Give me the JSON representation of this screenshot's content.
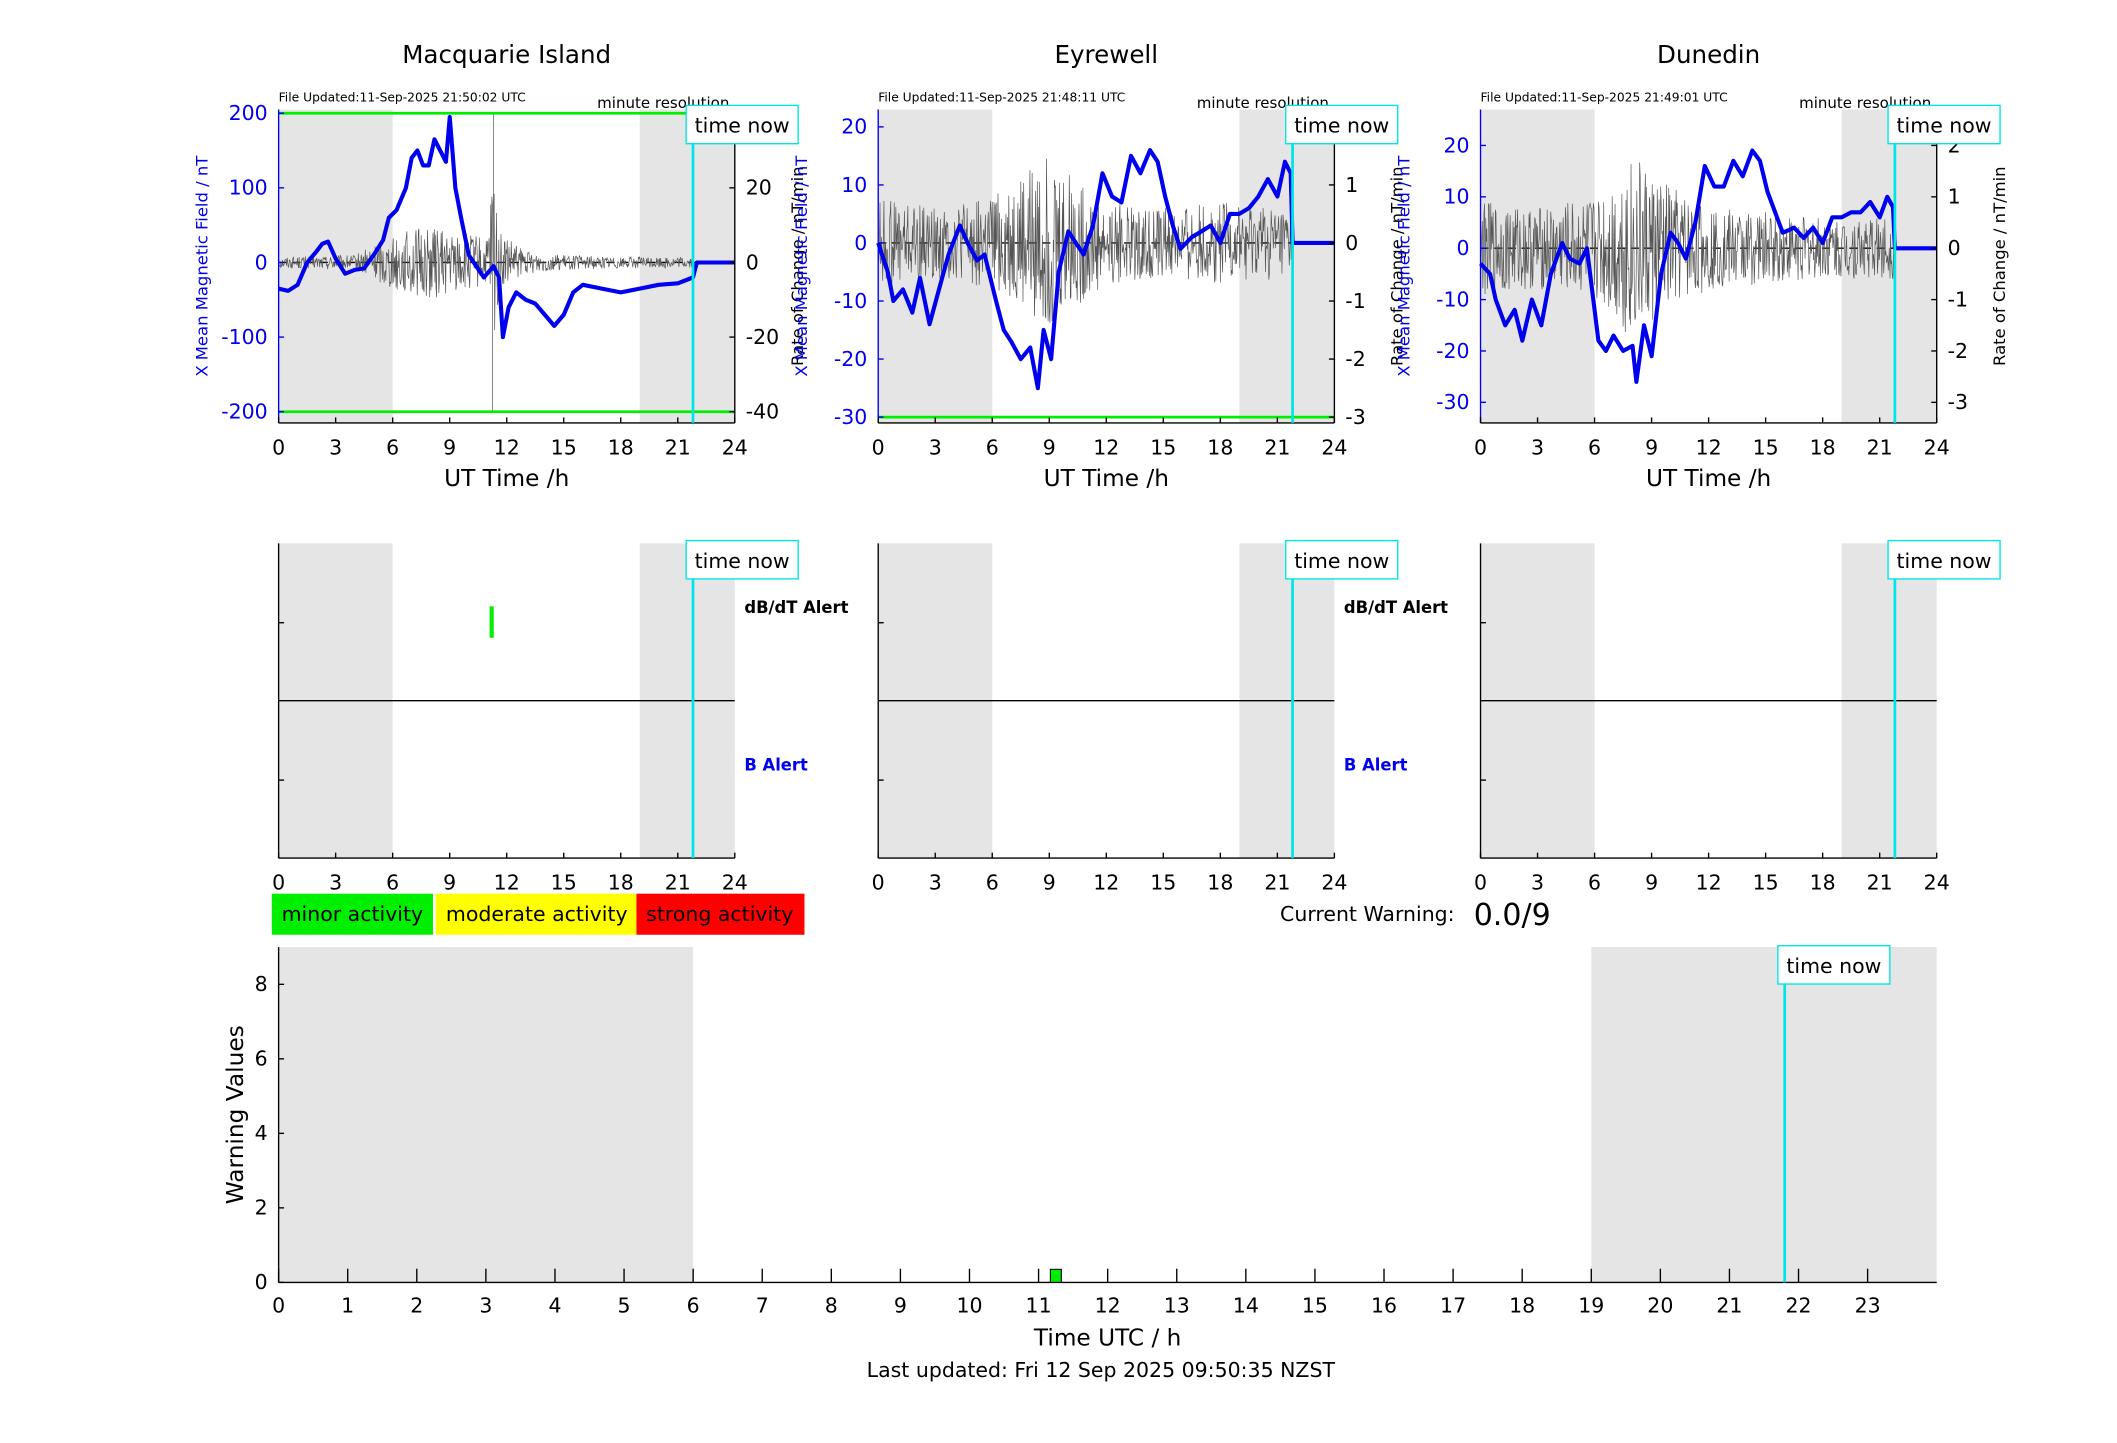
{
  "colors": {
    "blue": "#0000ee",
    "green": "#00ee00",
    "cyan": "#00e5e5",
    "shade": "#e5e5e5",
    "yellow": "#ffff00",
    "red": "#ff0000",
    "black": "#000000"
  },
  "common": {
    "x_label": "UT Time /h",
    "left_y_label": "X Mean Magnetic Field / nT",
    "right_y_label": "Rate of Change / nT/min",
    "resolution_label": "minute resolution",
    "time_now_label": "time now",
    "dbdt_alert_label": "dB/dT Alert",
    "b_alert_label": "B Alert",
    "x_ticks": [
      "0",
      "3",
      "6",
      "9",
      "12",
      "15",
      "18",
      "21",
      "24"
    ]
  },
  "legend": {
    "minor": "minor activity",
    "moderate": "moderate activity",
    "strong": "strong activity"
  },
  "current_warning": {
    "label": "Current Warning:",
    "value": "0.0/9"
  },
  "footer": {
    "last_updated": "Last updated: Fri 12 Sep 2025 09:50:35 NZST"
  },
  "chart_data": [
    {
      "type": "line",
      "title": "Macquarie Island",
      "file_updated": "File Updated:11-Sep-2025 21:50:02 UTC",
      "xlim": [
        0,
        24
      ],
      "ylim": [
        -215,
        205
      ],
      "y2lim": [
        -43,
        41
      ],
      "y_ticks": [
        "-200",
        "-100",
        "0",
        "100",
        "200"
      ],
      "y2_ticks": [
        "-40",
        "-20",
        "0",
        "20"
      ],
      "thresholds": [
        200,
        -200
      ],
      "time_now": 21.8,
      "shaded": [
        [
          0,
          6
        ],
        [
          19,
          24
        ]
      ],
      "field_series": {
        "name": "X Mean Magnetic Field",
        "points": [
          [
            0,
            -35
          ],
          [
            0.5,
            -38
          ],
          [
            1,
            -30
          ],
          [
            1.5,
            0
          ],
          [
            2,
            15
          ],
          [
            2.3,
            25
          ],
          [
            2.6,
            28
          ],
          [
            3,
            5
          ],
          [
            3.5,
            -15
          ],
          [
            4,
            -10
          ],
          [
            4.5,
            -8
          ],
          [
            5,
            10
          ],
          [
            5.5,
            30
          ],
          [
            5.8,
            60
          ],
          [
            6.2,
            70
          ],
          [
            6.7,
            100
          ],
          [
            7,
            140
          ],
          [
            7.3,
            150
          ],
          [
            7.6,
            130
          ],
          [
            7.9,
            130
          ],
          [
            8.2,
            165
          ],
          [
            8.5,
            150
          ],
          [
            8.8,
            135
          ],
          [
            9,
            195
          ],
          [
            9.3,
            100
          ],
          [
            9.6,
            60
          ],
          [
            10,
            10
          ],
          [
            10.4,
            -5
          ],
          [
            10.8,
            -20
          ],
          [
            11.3,
            -5
          ],
          [
            11.6,
            -20
          ],
          [
            11.8,
            -100
          ],
          [
            12.1,
            -60
          ],
          [
            12.5,
            -40
          ],
          [
            13,
            -50
          ],
          [
            13.5,
            -55
          ],
          [
            14,
            -70
          ],
          [
            14.5,
            -85
          ],
          [
            15,
            -70
          ],
          [
            15.5,
            -40
          ],
          [
            16,
            -30
          ],
          [
            17,
            -35
          ],
          [
            18,
            -40
          ],
          [
            19,
            -35
          ],
          [
            20,
            -30
          ],
          [
            21,
            -28
          ],
          [
            21.8,
            -20
          ],
          [
            22,
            0
          ],
          [
            24,
            0
          ]
        ]
      },
      "rate_series": {
        "name": "Rate of Change",
        "amplitude": [
          [
            0,
            1.5
          ],
          [
            4,
            2
          ],
          [
            5.5,
            6
          ],
          [
            6.5,
            8
          ],
          [
            8,
            10
          ],
          [
            9,
            8
          ],
          [
            10,
            8
          ],
          [
            11,
            6
          ],
          [
            11.3,
            30
          ],
          [
            11.6,
            8
          ],
          [
            13,
            3
          ],
          [
            15,
            2
          ],
          [
            18,
            1.5
          ],
          [
            21.8,
            1.5
          ]
        ],
        "spikes": [
          [
            11.3,
            40
          ],
          [
            11.25,
            -40
          ]
        ]
      }
    },
    {
      "type": "line",
      "title": "Eyrewell",
      "file_updated": "File Updated:11-Sep-2025 21:48:11 UTC",
      "xlim": [
        0,
        24
      ],
      "ylim": [
        -31,
        23
      ],
      "y2lim": [
        -3.1,
        2.3
      ],
      "y_ticks": [
        "-30",
        "-20",
        "-10",
        "0",
        "10",
        "20"
      ],
      "y2_ticks": [
        "-3",
        "-2",
        "-1",
        "0",
        "1",
        "2"
      ],
      "thresholds": [
        -30
      ],
      "time_now": 21.8,
      "shaded": [
        [
          0,
          6
        ],
        [
          19,
          24
        ]
      ],
      "field_series": {
        "name": "X Mean Magnetic Field",
        "points": [
          [
            0,
            0
          ],
          [
            0.5,
            -5
          ],
          [
            0.8,
            -10
          ],
          [
            1.3,
            -8
          ],
          [
            1.8,
            -12
          ],
          [
            2.2,
            -6
          ],
          [
            2.7,
            -14
          ],
          [
            3.2,
            -8
          ],
          [
            3.7,
            -2
          ],
          [
            4.3,
            3
          ],
          [
            4.7,
            0
          ],
          [
            5.2,
            -3
          ],
          [
            5.6,
            -2
          ],
          [
            6.2,
            -10
          ],
          [
            6.6,
            -15
          ],
          [
            7,
            -17
          ],
          [
            7.5,
            -20
          ],
          [
            8,
            -18
          ],
          [
            8.4,
            -25
          ],
          [
            8.7,
            -15
          ],
          [
            9.1,
            -20
          ],
          [
            9.5,
            -5
          ],
          [
            10,
            2
          ],
          [
            10.4,
            0
          ],
          [
            10.8,
            -2
          ],
          [
            11.3,
            3
          ],
          [
            11.8,
            12
          ],
          [
            12.3,
            8
          ],
          [
            12.8,
            7
          ],
          [
            13.3,
            15
          ],
          [
            13.8,
            12
          ],
          [
            14.3,
            16
          ],
          [
            14.7,
            14
          ],
          [
            15.1,
            8
          ],
          [
            15.5,
            3
          ],
          [
            15.9,
            -1
          ],
          [
            16.5,
            1
          ],
          [
            17,
            2
          ],
          [
            17.5,
            3
          ],
          [
            18,
            0
          ],
          [
            18.5,
            5
          ],
          [
            19,
            5
          ],
          [
            19.5,
            6
          ],
          [
            20,
            8
          ],
          [
            20.5,
            11
          ],
          [
            21,
            8
          ],
          [
            21.4,
            14
          ],
          [
            21.7,
            12
          ],
          [
            21.8,
            0
          ],
          [
            24,
            0
          ]
        ]
      },
      "rate_series": {
        "name": "Rate of Change",
        "amplitude": [
          [
            0,
            0.8
          ],
          [
            3,
            0.6
          ],
          [
            6,
            0.8
          ],
          [
            9,
            1.5
          ],
          [
            12,
            0.7
          ],
          [
            15,
            0.6
          ],
          [
            18,
            0.7
          ],
          [
            21.8,
            0.6
          ]
        ],
        "spikes": []
      }
    },
    {
      "type": "line",
      "title": "Dunedin",
      "file_updated": "File Updated:11-Sep-2025 21:49:01 UTC",
      "xlim": [
        0,
        24
      ],
      "ylim": [
        -34,
        27
      ],
      "y2lim": [
        -3.4,
        2.7
      ],
      "y_ticks": [
        "-30",
        "-20",
        "-10",
        "0",
        "10",
        "20"
      ],
      "y2_ticks": [
        "-3",
        "-2",
        "-1",
        "0",
        "1",
        "2"
      ],
      "thresholds": [],
      "time_now": 21.8,
      "shaded": [
        [
          0,
          6
        ],
        [
          19,
          24
        ]
      ],
      "field_series": {
        "name": "X Mean Magnetic Field",
        "points": [
          [
            0,
            -3
          ],
          [
            0.5,
            -5
          ],
          [
            0.8,
            -10
          ],
          [
            1.3,
            -15
          ],
          [
            1.8,
            -12
          ],
          [
            2.2,
            -18
          ],
          [
            2.7,
            -10
          ],
          [
            3.2,
            -15
          ],
          [
            3.7,
            -5
          ],
          [
            4.3,
            1
          ],
          [
            4.7,
            -2
          ],
          [
            5.2,
            -3
          ],
          [
            5.6,
            0
          ],
          [
            6.2,
            -18
          ],
          [
            6.6,
            -20
          ],
          [
            7,
            -17
          ],
          [
            7.5,
            -20
          ],
          [
            8,
            -19
          ],
          [
            8.2,
            -26
          ],
          [
            8.6,
            -15
          ],
          [
            9,
            -21
          ],
          [
            9.5,
            -5
          ],
          [
            10,
            3
          ],
          [
            10.4,
            1
          ],
          [
            10.8,
            -2
          ],
          [
            11.3,
            5
          ],
          [
            11.8,
            16
          ],
          [
            12.3,
            12
          ],
          [
            12.8,
            12
          ],
          [
            13.3,
            17
          ],
          [
            13.8,
            14
          ],
          [
            14.3,
            19
          ],
          [
            14.7,
            17
          ],
          [
            15.1,
            11
          ],
          [
            15.5,
            7
          ],
          [
            15.9,
            3
          ],
          [
            16.5,
            4
          ],
          [
            17,
            2
          ],
          [
            17.5,
            4
          ],
          [
            18,
            1
          ],
          [
            18.5,
            6
          ],
          [
            19,
            6
          ],
          [
            19.5,
            7
          ],
          [
            20,
            7
          ],
          [
            20.5,
            9
          ],
          [
            21,
            6
          ],
          [
            21.4,
            10
          ],
          [
            21.7,
            8
          ],
          [
            21.8,
            0
          ],
          [
            24,
            0
          ]
        ]
      },
      "rate_series": {
        "name": "Rate of Change",
        "amplitude": [
          [
            0,
            0.9
          ],
          [
            3,
            0.8
          ],
          [
            6,
            1.0
          ],
          [
            8,
            1.8
          ],
          [
            10,
            1.2
          ],
          [
            12,
            0.8
          ],
          [
            15,
            0.7
          ],
          [
            18,
            0.6
          ],
          [
            21.8,
            0.6
          ]
        ],
        "spikes": []
      }
    },
    {
      "type": "bar",
      "title": "",
      "xlabel": "Time UTC / h",
      "ylabel": "Warning Values",
      "xlim": [
        0,
        24
      ],
      "ylim": [
        0,
        9
      ],
      "x_ticks": [
        "0",
        "1",
        "2",
        "3",
        "4",
        "5",
        "6",
        "7",
        "8",
        "9",
        "10",
        "11",
        "12",
        "13",
        "14",
        "15",
        "16",
        "17",
        "18",
        "19",
        "20",
        "21",
        "22",
        "23"
      ],
      "y_ticks": [
        "0",
        "2",
        "4",
        "6",
        "8"
      ],
      "shaded": [
        [
          0,
          6
        ],
        [
          19,
          24
        ]
      ],
      "time_now": 21.8,
      "bars": [
        {
          "x": 11.25,
          "value": 0.35,
          "level": "minor"
        }
      ]
    }
  ],
  "alert_panels": [
    {
      "station": "Macquarie Island",
      "dbdt_alerts": [
        {
          "start": 11.1,
          "end": 11.3,
          "level": "minor"
        }
      ],
      "b_alerts": [],
      "time_now": 21.8
    },
    {
      "station": "Eyrewell",
      "dbdt_alerts": [],
      "b_alerts": [],
      "time_now": 21.8
    },
    {
      "station": "Dunedin",
      "dbdt_alerts": [],
      "b_alerts": [],
      "time_now": 21.8
    }
  ]
}
